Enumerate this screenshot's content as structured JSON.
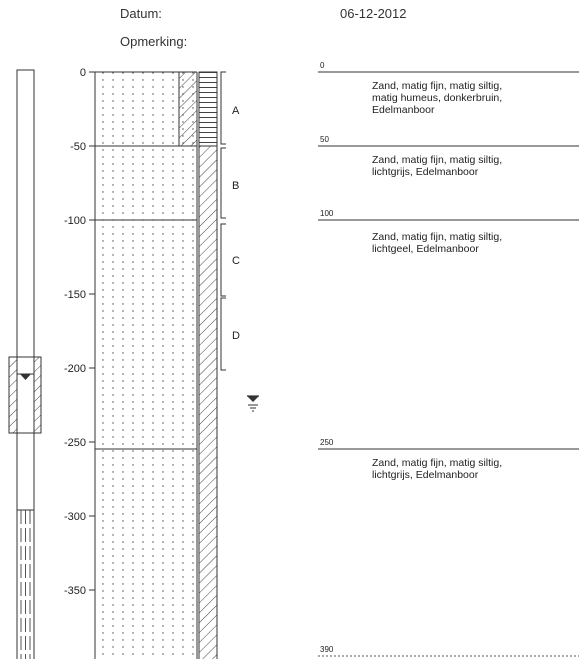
{
  "header": {
    "datum_label": "Datum:",
    "datum_value": "06-12-2012",
    "opmerking_label": "Opmerking:"
  },
  "depth_axis": {
    "ticks": [
      0,
      -50,
      -100,
      -150,
      -200,
      -250,
      -300,
      -350
    ]
  },
  "samples": [
    "A",
    "B",
    "C",
    "D"
  ],
  "layers": [
    {
      "top": "0",
      "description": [
        "Zand, matig fijn, matig siltig,",
        "matig humeus, donkerbruin,",
        "Edelmanboor"
      ]
    },
    {
      "top": "50",
      "description": [
        "Zand, matig fijn, matig siltig,",
        "lichtgrijs, Edelmanboor"
      ]
    },
    {
      "top": "100",
      "description": [
        "Zand, matig fijn, matig siltig,",
        "lichtgeel, Edelmanboor"
      ]
    },
    {
      "top": "250",
      "description": [
        "Zand, matig fijn, matig siltig,",
        "lichtgrijs, Edelmanboor"
      ]
    }
  ],
  "end_depth": "390",
  "colors": {
    "line": "#333333",
    "text": "#222222"
  },
  "icons": {
    "water_level": "groundwater-level-icon"
  }
}
